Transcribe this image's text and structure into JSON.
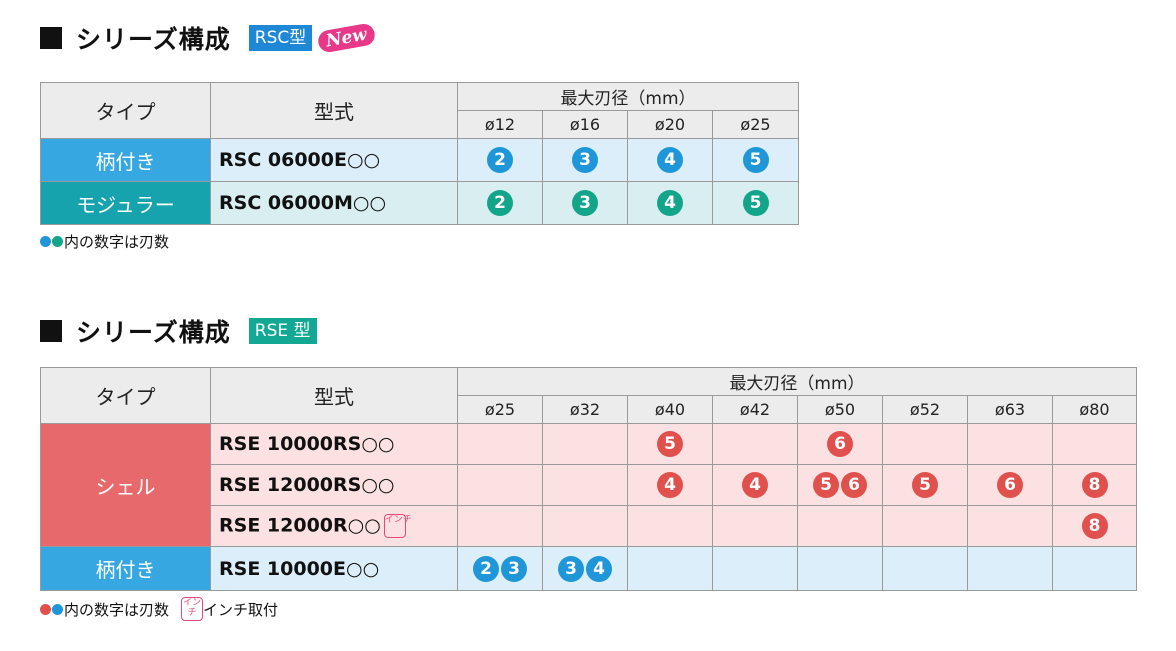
{
  "rsc": {
    "title": "シリーズ構成",
    "tag": "RSC型",
    "new_badge": "New",
    "header": {
      "type": "タイプ",
      "model": "型式",
      "diameter": "最大刃径（mm）"
    },
    "diameters": [
      "ø12",
      "ø16",
      "ø20",
      "ø25"
    ],
    "rows": [
      {
        "category": "柄付き",
        "model": "RSC 06000E○○",
        "teeth": [
          "2",
          "3",
          "4",
          "5"
        ]
      },
      {
        "category": "モジュラー",
        "model": "RSC 06000M○○",
        "teeth": [
          "2",
          "3",
          "4",
          "5"
        ]
      }
    ],
    "note": "内の数字は刃数"
  },
  "rse": {
    "title": "シリーズ構成",
    "tag": "RSE 型",
    "header": {
      "type": "タイプ",
      "model": "型式",
      "diameter": "最大刃径（mm）"
    },
    "diameters": [
      "ø25",
      "ø32",
      "ø40",
      "ø42",
      "ø50",
      "ø52",
      "ø63",
      "ø80"
    ],
    "shell_category": "シェル",
    "rows": [
      {
        "model": "RSE 10000RS○○",
        "cells": [
          [],
          [],
          [
            "5"
          ],
          [],
          [
            "6"
          ],
          [],
          [],
          []
        ]
      },
      {
        "model": "RSE 12000RS○○",
        "cells": [
          [],
          [],
          [
            "4"
          ],
          [
            "4"
          ],
          [
            "5",
            "6"
          ],
          [
            "5"
          ],
          [
            "6"
          ],
          [
            "8"
          ]
        ]
      },
      {
        "model": "RSE 12000R○○",
        "inch_icon": "インチ",
        "cells": [
          [],
          [],
          [],
          [],
          [],
          [],
          [],
          [
            "8"
          ]
        ]
      }
    ],
    "shank_row": {
      "category": "柄付き",
      "model": "RSE 10000E○○",
      "cells": [
        [
          "2",
          "3"
        ],
        [
          "3",
          "4"
        ],
        [],
        [],
        [],
        [],
        [],
        []
      ]
    },
    "note": "内の数字は刃数",
    "inch_icon": "インチ",
    "inch_note": "インチ取付"
  }
}
